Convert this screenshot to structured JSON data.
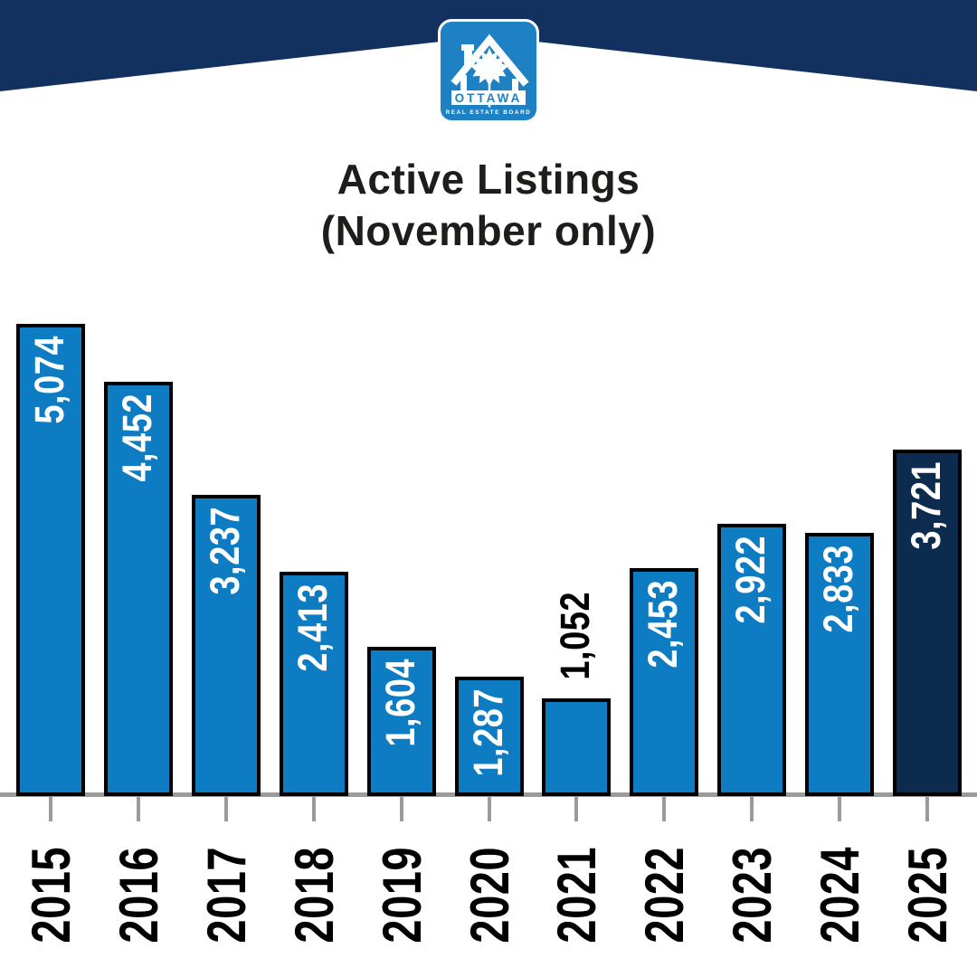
{
  "header": {
    "logo": {
      "org_name": "OTTAWA",
      "org_subtitle": "REAL ESTATE BOARD"
    }
  },
  "colors": {
    "header_navy": "#13315f",
    "bar_blue": "#0e7cc3",
    "bar_highlight_navy": "#0c2b4f",
    "logo_blue": "#1e81c4",
    "axis_gray": "#9b9b9b",
    "title_text": "#1d1d1b",
    "bar_label_inside": "#ffffff",
    "bar_label_outside": "#000000"
  },
  "chart_data": {
    "type": "bar",
    "title_line1": "Active Listings",
    "title_line2": "(November only)",
    "categories": [
      "2015",
      "2016",
      "2017",
      "2018",
      "2019",
      "2020",
      "2021",
      "2022",
      "2023",
      "2024",
      "2025"
    ],
    "values": [
      5074,
      4452,
      3237,
      2413,
      1604,
      1287,
      1052,
      2453,
      2922,
      2833,
      3721
    ],
    "value_labels": [
      "5,074",
      "4,452",
      "3,237",
      "2,413",
      "1,604",
      "1,287",
      "1,052",
      "2,453",
      "2,922",
      "2,833",
      "3,721"
    ],
    "label_positions": [
      "inside",
      "inside",
      "inside",
      "inside",
      "inside",
      "inside",
      "outside",
      "inside",
      "inside",
      "inside",
      "inside"
    ],
    "highlighted_category": "2025",
    "xlabel": "",
    "ylabel": "",
    "ylim": [
      0,
      5074
    ],
    "grid": false,
    "legend": false,
    "y_axis_shown": false,
    "x_axis": {
      "tick_marks": true,
      "label_rotation_deg": -90
    },
    "value_label_rotation_deg": -90
  }
}
